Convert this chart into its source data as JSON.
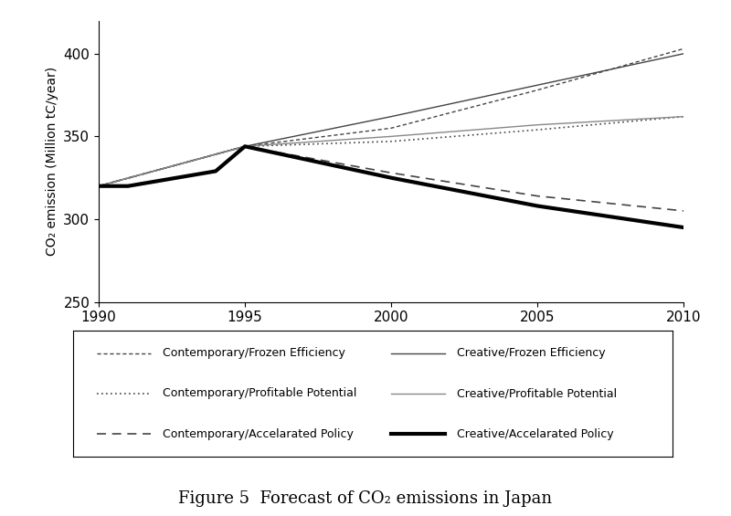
{
  "title": "Figure 5  Forecast of CO₂ emissions in Japan",
  "ylabel": "CO₂ emission (Million tC/year)",
  "xlim": [
    1990,
    2010
  ],
  "ylim": [
    250,
    420
  ],
  "yticks": [
    250,
    300,
    350,
    400
  ],
  "xticks": [
    1990,
    1995,
    2000,
    2005,
    2010
  ],
  "background_color": "#ffffff",
  "series": {
    "contemp_frozen": {
      "x": [
        1990,
        1995,
        2000,
        2005,
        2010
      ],
      "y": [
        320,
        344,
        355,
        378,
        403
      ],
      "linestyle": "fine_dash",
      "color": "#444444",
      "linewidth": 1.0,
      "label": "Contemporary/Frozen Efficiency"
    },
    "contemp_profitable": {
      "x": [
        1990,
        1995,
        2000,
        2005,
        2010
      ],
      "y": [
        320,
        344,
        347,
        354,
        362
      ],
      "linestyle": "dotted",
      "color": "#444444",
      "linewidth": 1.2,
      "label": "Contemporary/Profitable Potential"
    },
    "contemp_accel": {
      "x": [
        1990,
        1995,
        2000,
        2005,
        2010
      ],
      "y": [
        320,
        344,
        328,
        314,
        305
      ],
      "linestyle": "coarse_dash",
      "color": "#444444",
      "linewidth": 1.2,
      "label": "Contemporary/Accelarated Policy"
    },
    "creative_frozen": {
      "x": [
        1990,
        1995,
        2000,
        2005,
        2010
      ],
      "y": [
        320,
        344,
        362,
        381,
        400
      ],
      "linestyle": "solid",
      "color": "#444444",
      "linewidth": 1.0,
      "label": "Creative/Frozen Efficiency"
    },
    "creative_profitable": {
      "x": [
        1990,
        1995,
        2000,
        2005,
        2010
      ],
      "y": [
        320,
        344,
        350,
        357,
        362
      ],
      "linestyle": "solid",
      "color": "#888888",
      "linewidth": 1.0,
      "label": "Creative/Profitable Potential"
    },
    "creative_accel": {
      "x": [
        1990,
        1991,
        1994,
        1995,
        2000,
        2005,
        2010
      ],
      "y": [
        320,
        320,
        329,
        344,
        325,
        308,
        295
      ],
      "linestyle": "solid",
      "color": "#000000",
      "linewidth": 3.0,
      "label": "Creative/Accelarated Policy"
    }
  },
  "legend_fontsize": 9,
  "title_fontsize": 13
}
